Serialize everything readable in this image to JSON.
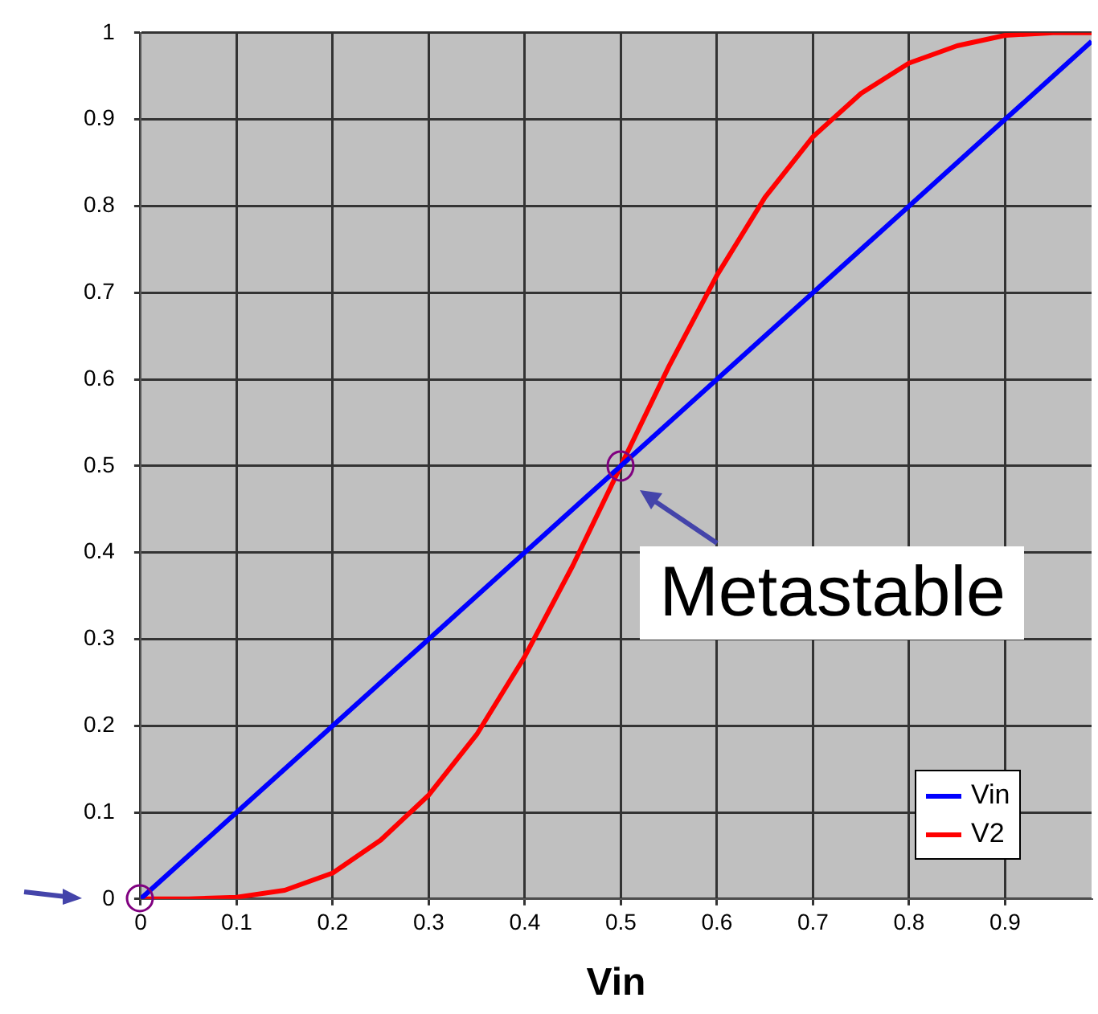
{
  "chart_data": {
    "type": "line",
    "xlabel": "Vin",
    "series": [
      {
        "name": "Vin",
        "color": "#0000ff",
        "x": [
          0,
          0.1,
          0.2,
          0.3,
          0.4,
          0.5,
          0.6,
          0.7,
          0.8,
          0.9,
          0.99
        ],
        "values": [
          0,
          0.1,
          0.2,
          0.3,
          0.4,
          0.5,
          0.6,
          0.7,
          0.8,
          0.9,
          0.99
        ]
      },
      {
        "name": "V2",
        "color": "#ff0000",
        "x": [
          0,
          0.05,
          0.1,
          0.15,
          0.2,
          0.25,
          0.3,
          0.35,
          0.4,
          0.45,
          0.5,
          0.55,
          0.6,
          0.65,
          0.7,
          0.75,
          0.8,
          0.85,
          0.9,
          0.95,
          0.99
        ],
        "values": [
          0,
          0,
          0.002,
          0.01,
          0.03,
          0.068,
          0.12,
          0.19,
          0.28,
          0.385,
          0.5,
          0.615,
          0.72,
          0.81,
          0.88,
          0.93,
          0.965,
          0.985,
          0.997,
          1,
          1
        ]
      }
    ],
    "xlim": [
      0,
      0.99
    ],
    "xticks": [
      0,
      0.1,
      0.2,
      0.3,
      0.4,
      0.5,
      0.6,
      0.7,
      0.8,
      0.9
    ],
    "ylim": [
      0,
      1
    ],
    "yticks": [
      0,
      0.1,
      0.2,
      0.3,
      0.4,
      0.5,
      0.6,
      0.7,
      0.8,
      0.9,
      1
    ],
    "grid": true,
    "legend": "bottom right",
    "marker": "none",
    "line_style": "solid",
    "annotations": [
      {
        "text": "Metastable",
        "x": 0.5,
        "y": 0.5
      }
    ]
  }
}
